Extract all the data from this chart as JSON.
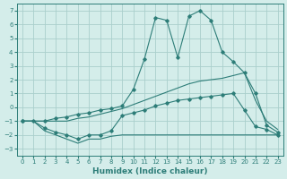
{
  "xlabel": "Humidex (Indice chaleur)",
  "background_color": "#d4edea",
  "grid_color": "#aacfcc",
  "line_color": "#2d7d78",
  "xlim": [
    -0.5,
    23.5
  ],
  "ylim": [
    -3.5,
    7.5
  ],
  "xticks": [
    0,
    1,
    2,
    3,
    4,
    5,
    6,
    7,
    8,
    9,
    10,
    11,
    12,
    13,
    14,
    15,
    16,
    17,
    18,
    19,
    20,
    21,
    22,
    23
  ],
  "yticks": [
    -3,
    -2,
    -1,
    0,
    1,
    2,
    3,
    4,
    5,
    6,
    7
  ],
  "line1_x": [
    0,
    1,
    2,
    3,
    4,
    5,
    6,
    7,
    8,
    9,
    10,
    11,
    12,
    13,
    14,
    15,
    16,
    17,
    18,
    19,
    20,
    21,
    22,
    23
  ],
  "line1_y": [
    -1.0,
    -1.0,
    -1.7,
    -2.0,
    -2.3,
    -2.6,
    -2.3,
    -2.3,
    -2.1,
    -2.0,
    -2.0,
    -2.0,
    -2.0,
    -2.0,
    -2.0,
    -2.0,
    -2.0,
    -2.0,
    -2.0,
    -2.0,
    -2.0,
    -2.0,
    -2.0,
    -2.0
  ],
  "line2_x": [
    0,
    1,
    2,
    3,
    4,
    5,
    6,
    7,
    8,
    9,
    10,
    11,
    12,
    13,
    14,
    15,
    16,
    17,
    18,
    19,
    20,
    21,
    22,
    23
  ],
  "line2_y": [
    -1.0,
    -1.0,
    -1.5,
    -1.8,
    -2.0,
    -2.3,
    -2.0,
    -2.0,
    -1.7,
    -0.6,
    -0.4,
    -0.2,
    0.1,
    0.3,
    0.5,
    0.6,
    0.7,
    0.8,
    0.9,
    1.0,
    -0.2,
    -1.4,
    -1.6,
    -2.0
  ],
  "line3_x": [
    0,
    2,
    3,
    4,
    5,
    6,
    7,
    8,
    9,
    10,
    11,
    12,
    13,
    14,
    15,
    16,
    17,
    18,
    19,
    20,
    21,
    22,
    23
  ],
  "line3_y": [
    -1.0,
    -1.0,
    -1.0,
    -1.0,
    -0.8,
    -0.7,
    -0.5,
    -0.3,
    -0.1,
    0.2,
    0.5,
    0.8,
    1.1,
    1.4,
    1.7,
    1.9,
    2.0,
    2.1,
    2.3,
    2.5,
    0.5,
    -1.0,
    -1.6
  ],
  "line4_x": [
    0,
    2,
    3,
    4,
    5,
    6,
    7,
    8,
    9,
    10,
    11,
    12,
    13,
    14,
    15,
    16,
    17,
    18,
    19,
    20,
    21,
    22,
    23
  ],
  "line4_y": [
    -1.0,
    -1.0,
    -0.8,
    -0.7,
    -0.5,
    -0.4,
    -0.2,
    -0.1,
    0.1,
    1.3,
    3.5,
    6.5,
    6.3,
    3.6,
    6.6,
    7.0,
    6.3,
    4.0,
    3.3,
    2.5,
    1.0,
    -1.3,
    -1.8
  ]
}
